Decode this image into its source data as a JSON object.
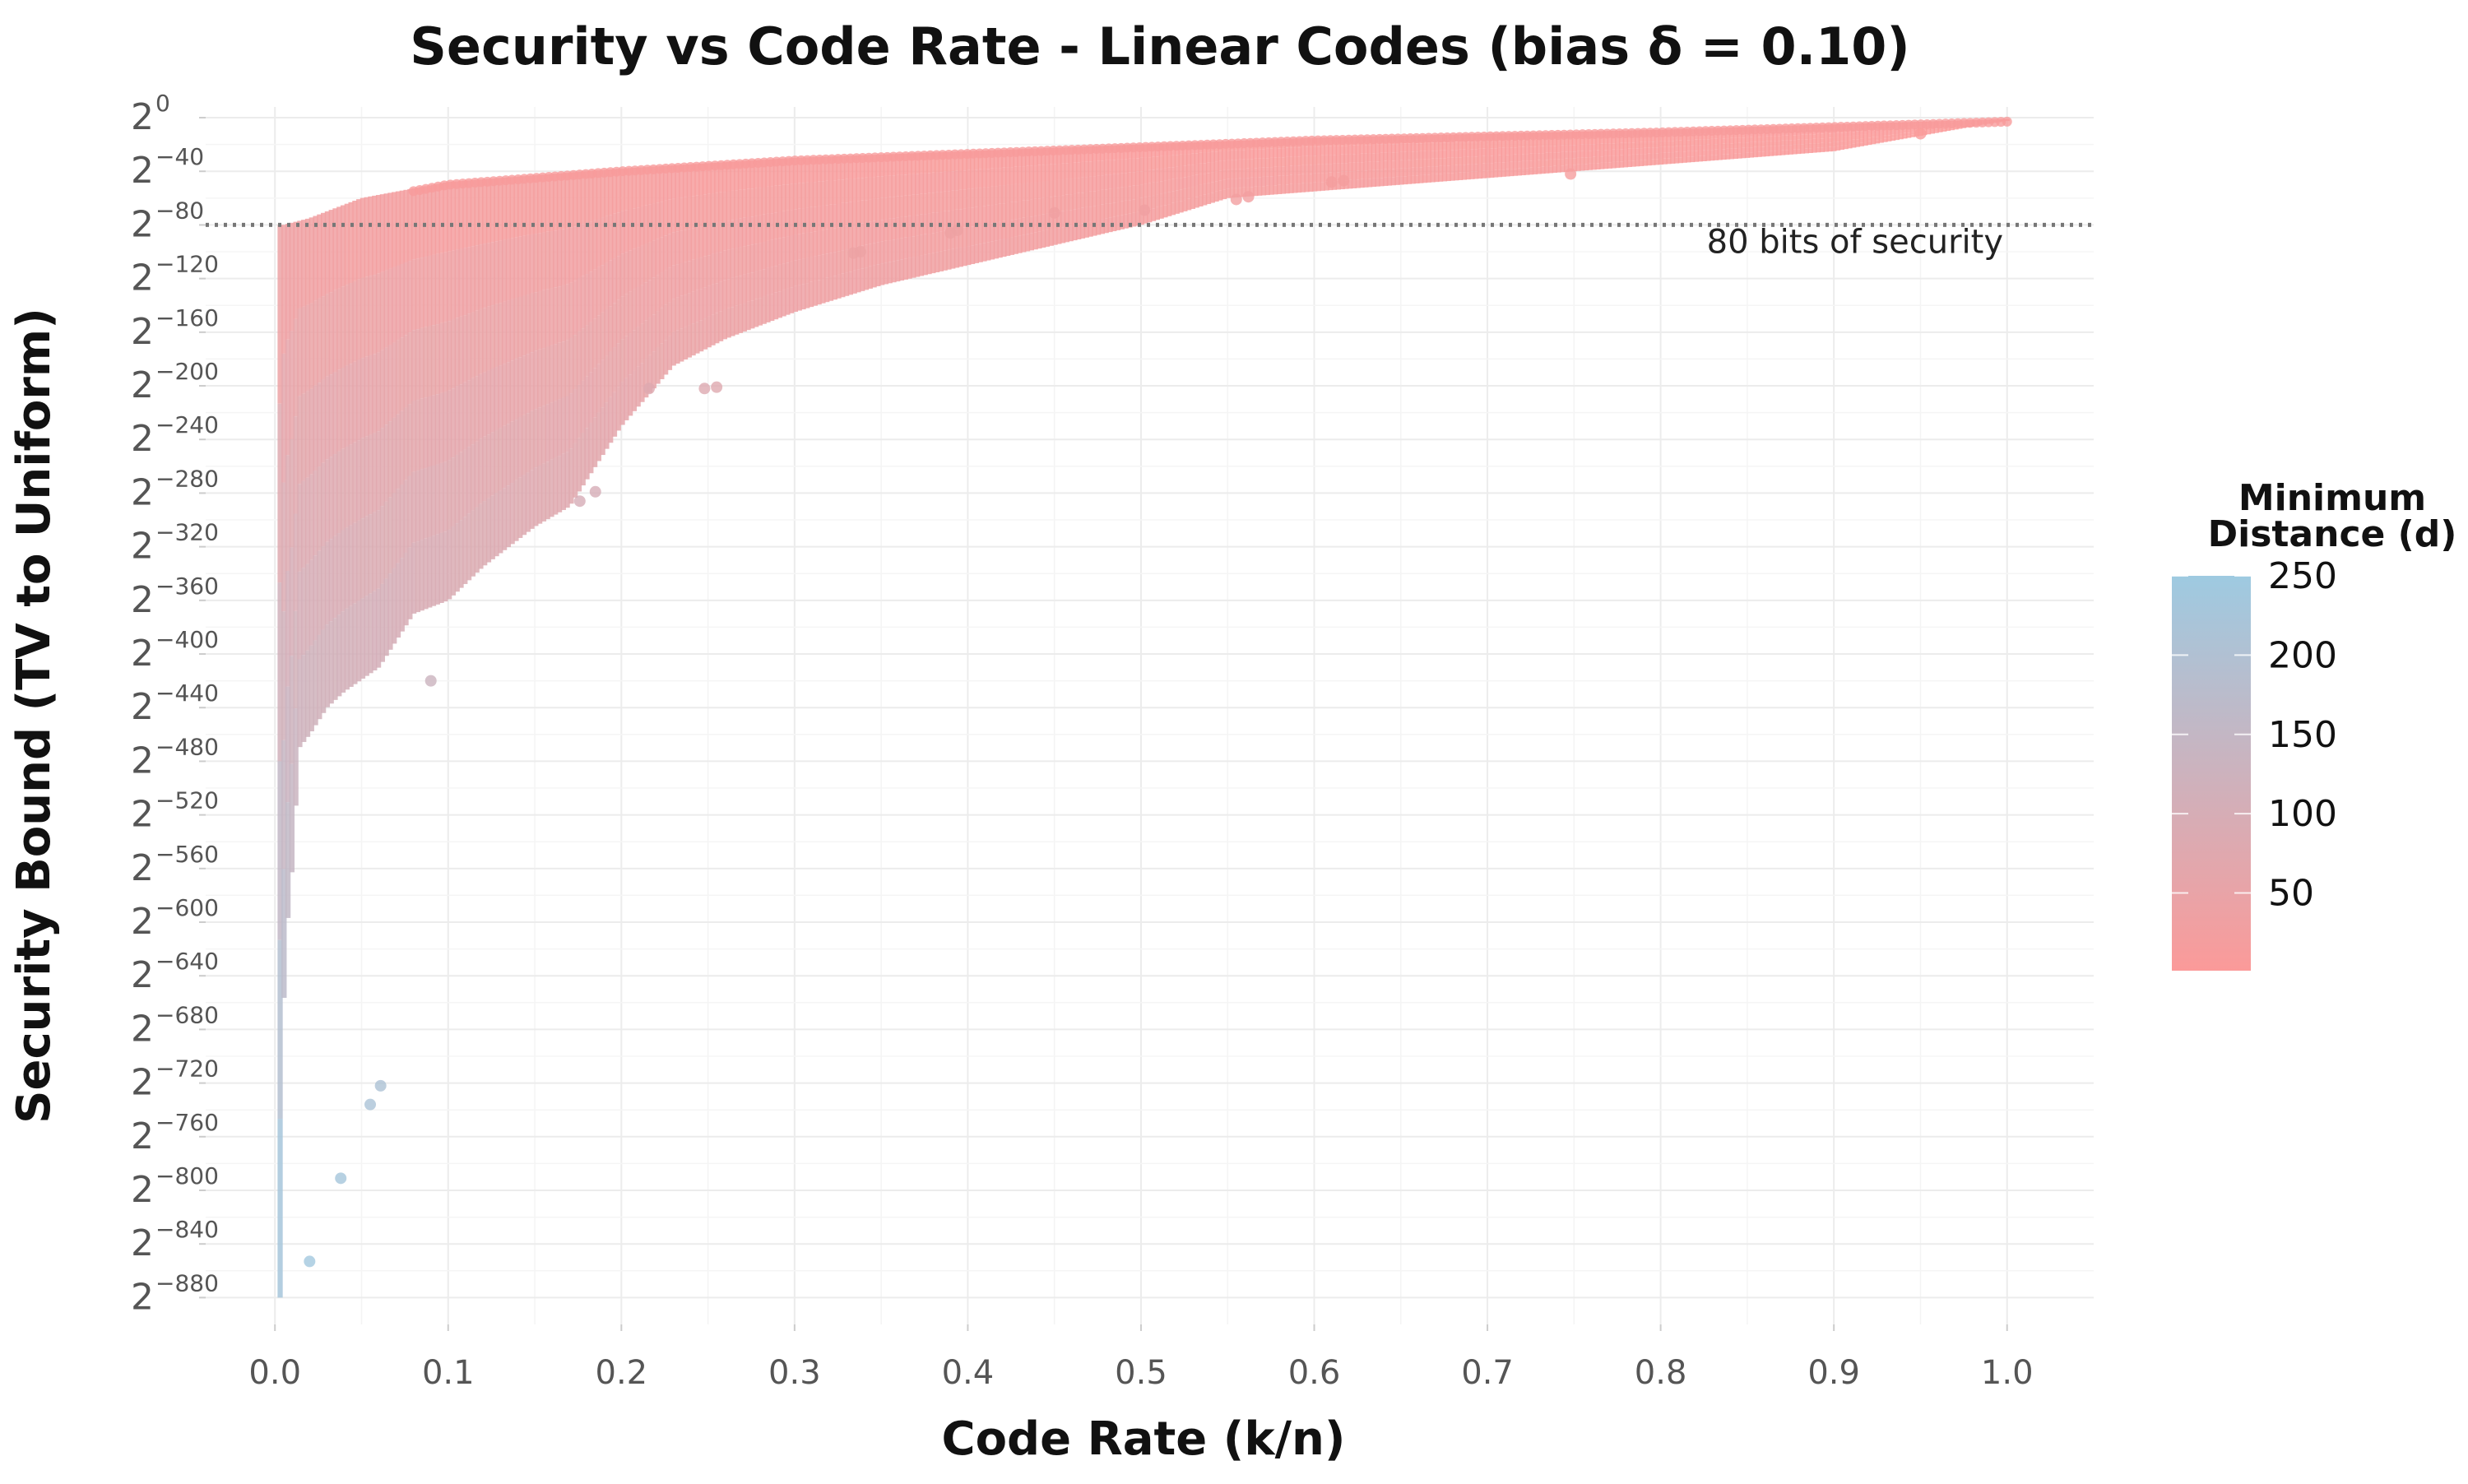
{
  "chart_data": {
    "type": "scatter",
    "title": "Security vs Code Rate - Linear Codes (bias δ = 0.10)",
    "xlabel": "Code Rate (k/n)",
    "ylabel": "Security Bound (TV to Uniform)",
    "xlim": [
      -0.04,
      1.05
    ],
    "ylim_log2": [
      -900,
      8
    ],
    "x_ticks": [
      {
        "value": 0.0,
        "label": "0.0"
      },
      {
        "value": 0.1,
        "label": "0.1"
      },
      {
        "value": 0.2,
        "label": "0.2"
      },
      {
        "value": 0.3,
        "label": "0.3"
      },
      {
        "value": 0.4,
        "label": "0.4"
      },
      {
        "value": 0.5,
        "label": "0.5"
      },
      {
        "value": 0.6,
        "label": "0.6"
      },
      {
        "value": 0.7,
        "label": "0.7"
      },
      {
        "value": 0.8,
        "label": "0.8"
      },
      {
        "value": 0.9,
        "label": "0.9"
      },
      {
        "value": 1.0,
        "label": "1.0"
      }
    ],
    "y_ticks": [
      {
        "value": 0,
        "base": "2",
        "exp": "0"
      },
      {
        "value": -40,
        "base": "2",
        "exp": "−40"
      },
      {
        "value": -80,
        "base": "2",
        "exp": "−80"
      },
      {
        "value": -120,
        "base": "2",
        "exp": "−120"
      },
      {
        "value": -160,
        "base": "2",
        "exp": "−160"
      },
      {
        "value": -200,
        "base": "2",
        "exp": "−200"
      },
      {
        "value": -240,
        "base": "2",
        "exp": "−240"
      },
      {
        "value": -280,
        "base": "2",
        "exp": "−280"
      },
      {
        "value": -320,
        "base": "2",
        "exp": "−320"
      },
      {
        "value": -360,
        "base": "2",
        "exp": "−360"
      },
      {
        "value": -400,
        "base": "2",
        "exp": "−400"
      },
      {
        "value": -440,
        "base": "2",
        "exp": "−440"
      },
      {
        "value": -480,
        "base": "2",
        "exp": "−480"
      },
      {
        "value": -520,
        "base": "2",
        "exp": "−520"
      },
      {
        "value": -560,
        "base": "2",
        "exp": "−560"
      },
      {
        "value": -600,
        "base": "2",
        "exp": "−600"
      },
      {
        "value": -640,
        "base": "2",
        "exp": "−640"
      },
      {
        "value": -680,
        "base": "2",
        "exp": "−680"
      },
      {
        "value": -720,
        "base": "2",
        "exp": "−720"
      },
      {
        "value": -760,
        "base": "2",
        "exp": "−760"
      },
      {
        "value": -800,
        "base": "2",
        "exp": "−800"
      },
      {
        "value": -840,
        "base": "2",
        "exp": "−840"
      },
      {
        "value": -880,
        "base": "2",
        "exp": "−880"
      }
    ],
    "reference_line": {
      "y_log2": -80,
      "label": "80 bits of security",
      "style": "dotted",
      "color": "#777777"
    },
    "colorscale": {
      "title_line1": "Minimum",
      "title_line2": "Distance (d)",
      "min": 1,
      "max": 250,
      "low_color": "#fb9a99",
      "high_color": "#9ecae1",
      "ticks": [
        {
          "value": 250,
          "label": "250"
        },
        {
          "value": 200,
          "label": "200"
        },
        {
          "value": 150,
          "label": "150"
        },
        {
          "value": 100,
          "label": "100"
        },
        {
          "value": 50,
          "label": "50"
        }
      ]
    },
    "envelope": {
      "description": "upper (max) and lower (min) security bound in log2 per code rate",
      "upper": [
        [
          0.005,
          -80
        ],
        [
          0.02,
          -75
        ],
        [
          0.05,
          -60
        ],
        [
          0.1,
          -48
        ],
        [
          0.2,
          -38
        ],
        [
          0.3,
          -30
        ],
        [
          0.4,
          -25
        ],
        [
          0.5,
          -20
        ],
        [
          0.6,
          -15
        ],
        [
          0.7,
          -12
        ],
        [
          0.8,
          -9
        ],
        [
          0.9,
          -5
        ],
        [
          1.0,
          -1
        ]
      ],
      "lower": [
        [
          0.003,
          -880
        ],
        [
          0.004,
          -720
        ],
        [
          0.006,
          -620
        ],
        [
          0.01,
          -560
        ],
        [
          0.014,
          -470
        ],
        [
          0.02,
          -460
        ],
        [
          0.03,
          -440
        ],
        [
          0.04,
          -428
        ],
        [
          0.06,
          -410
        ],
        [
          0.08,
          -370
        ],
        [
          0.1,
          -360
        ],
        [
          0.12,
          -335
        ],
        [
          0.15,
          -305
        ],
        [
          0.17,
          -290
        ],
        [
          0.2,
          -230
        ],
        [
          0.23,
          -185
        ],
        [
          0.26,
          -165
        ],
        [
          0.3,
          -145
        ],
        [
          0.35,
          -125
        ],
        [
          0.4,
          -110
        ],
        [
          0.45,
          -95
        ],
        [
          0.5,
          -80
        ],
        [
          0.55,
          -60
        ],
        [
          0.6,
          -55
        ],
        [
          0.7,
          -45
        ],
        [
          0.8,
          -35
        ],
        [
          0.9,
          -25
        ],
        [
          1.0,
          -2
        ]
      ]
    },
    "outliers": [
      {
        "x": 0.02,
        "y_log2": -853,
        "d": 240
      },
      {
        "x": 0.038,
        "y_log2": -791,
        "d": 230
      },
      {
        "x": 0.055,
        "y_log2": -736,
        "d": 215
      },
      {
        "x": 0.061,
        "y_log2": -722,
        "d": 210
      },
      {
        "x": 0.09,
        "y_log2": -420,
        "d": 130
      },
      {
        "x": 0.176,
        "y_log2": -286,
        "d": 100
      },
      {
        "x": 0.185,
        "y_log2": -279,
        "d": 100
      },
      {
        "x": 0.216,
        "y_log2": -202,
        "d": 80
      },
      {
        "x": 0.248,
        "y_log2": -202,
        "d": 80
      },
      {
        "x": 0.255,
        "y_log2": -201,
        "d": 78
      },
      {
        "x": 0.334,
        "y_log2": -101,
        "d": 40
      },
      {
        "x": 0.338,
        "y_log2": -100,
        "d": 40
      },
      {
        "x": 0.39,
        "y_log2": -86,
        "d": 35
      },
      {
        "x": 0.394,
        "y_log2": -84,
        "d": 35
      },
      {
        "x": 0.45,
        "y_log2": -71,
        "d": 30
      },
      {
        "x": 0.502,
        "y_log2": -69,
        "d": 30
      },
      {
        "x": 0.555,
        "y_log2": -61,
        "d": 25
      },
      {
        "x": 0.562,
        "y_log2": -59,
        "d": 25
      },
      {
        "x": 0.61,
        "y_log2": -48,
        "d": 20
      },
      {
        "x": 0.617,
        "y_log2": -47,
        "d": 20
      },
      {
        "x": 0.748,
        "y_log2": -42,
        "d": 15
      },
      {
        "x": 0.95,
        "y_log2": -12,
        "d": 5
      }
    ]
  }
}
